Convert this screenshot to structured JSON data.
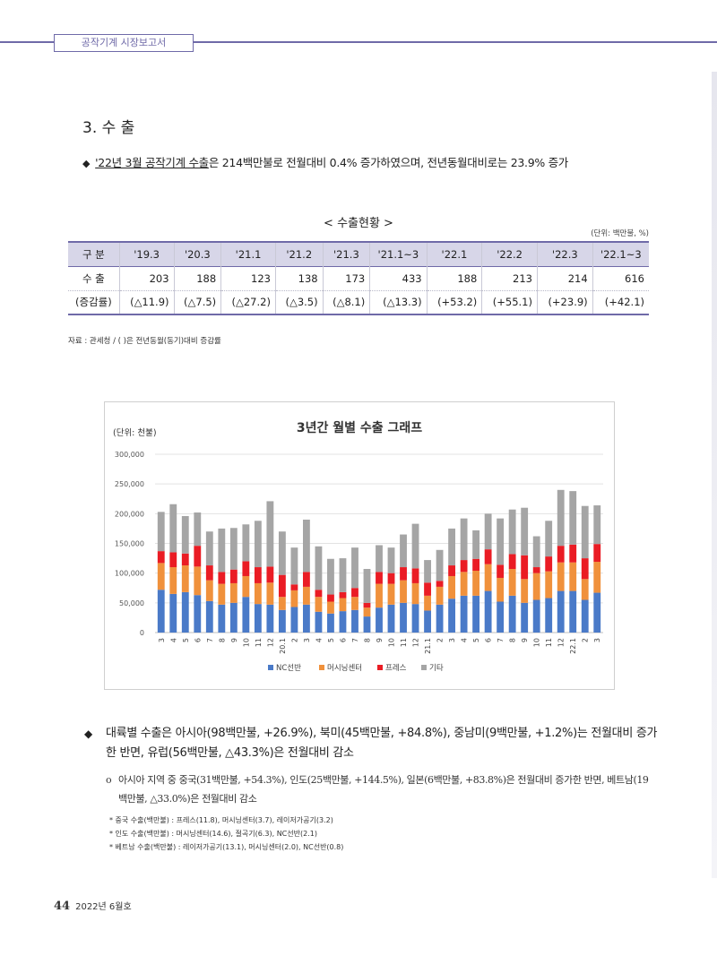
{
  "header": {
    "tab_label": "공작기계 시장보고서"
  },
  "section": {
    "title": "3. 수 출"
  },
  "lead": {
    "marker": "◆",
    "emphasis": "'22년 3월 공작기계 수출",
    "rest": "은 214백만불로 전월대비 0.4% 증가하였으며, 전년동월대비로는 23.9% 증가"
  },
  "table": {
    "title": "< 수출현황 >",
    "unit": "(단위: 백만불, %)",
    "headers": [
      "구 분",
      "'19.3",
      "'20.3",
      "'21.1",
      "'21.2",
      "'21.3",
      "'21.1~3",
      "'22.1",
      "'22.2",
      "'22.3",
      "'22.1~3"
    ],
    "rows": [
      {
        "label": "수 출",
        "values": [
          "203",
          "188",
          "123",
          "138",
          "173",
          "433",
          "188",
          "213",
          "214",
          "616"
        ]
      },
      {
        "label": "(증감률)",
        "values": [
          "(△11.9)",
          "(△7.5)",
          "(△27.2)",
          "(△3.5)",
          "(△8.1)",
          "(△13.3)",
          "(+53.2)",
          "(+55.1)",
          "(+23.9)",
          "(+42.1)"
        ]
      }
    ],
    "source": "자료 : 관세청 / (  )은 전년동월(동기)대비 증감률"
  },
  "chart_data": {
    "type": "bar",
    "stacked": true,
    "title": "3년간 월별 수출 그래프",
    "unit_label": "(단위: 천불)",
    "ylim": [
      0,
      300000
    ],
    "yticks": [
      0,
      50000,
      100000,
      150000,
      200000,
      250000,
      300000
    ],
    "ytick_labels": [
      "0",
      "50,000",
      "100,000",
      "150,000",
      "200,000",
      "250,000",
      "300,000"
    ],
    "grid": true,
    "legend_position": "bottom",
    "categories": [
      "3",
      "4",
      "5",
      "6",
      "7",
      "8",
      "9",
      "10",
      "11",
      "12",
      "20.1",
      "2",
      "3",
      "4",
      "5",
      "6",
      "7",
      "8",
      "9",
      "10",
      "11",
      "12",
      "21.1",
      "2",
      "3",
      "4",
      "5",
      "6",
      "7",
      "8",
      "9",
      "10",
      "11",
      "12",
      "22.1",
      "2",
      "3"
    ],
    "series": [
      {
        "name": "NC선반",
        "color": "#4a7ac8",
        "values": [
          72000,
          65000,
          68000,
          63000,
          53000,
          47000,
          50000,
          60000,
          48000,
          47000,
          38000,
          43000,
          47000,
          35000,
          32000,
          36000,
          38000,
          27000,
          42000,
          47000,
          50000,
          48000,
          37000,
          47000,
          57000,
          62000,
          62000,
          70000,
          52000,
          62000,
          50000,
          55000,
          58000,
          70000,
          70000,
          55000,
          67000
        ]
      },
      {
        "name": "머시닝센터",
        "color": "#f0913c",
        "values": [
          45000,
          45000,
          45000,
          48000,
          35000,
          35000,
          33000,
          35000,
          35000,
          37000,
          22000,
          28000,
          30000,
          25000,
          20000,
          22000,
          22000,
          15000,
          40000,
          35000,
          38000,
          35000,
          25000,
          30000,
          38000,
          40000,
          42000,
          45000,
          40000,
          45000,
          40000,
          45000,
          45000,
          48000,
          48000,
          35000,
          52000
        ]
      },
      {
        "name": "프레스",
        "color": "#ea1c24",
        "values": [
          20000,
          25000,
          20000,
          35000,
          25000,
          20000,
          23000,
          25000,
          27000,
          27000,
          37000,
          10000,
          25000,
          12000,
          12000,
          10000,
          15000,
          8000,
          20000,
          18000,
          22000,
          25000,
          22000,
          10000,
          18000,
          20000,
          20000,
          25000,
          22000,
          25000,
          40000,
          10000,
          25000,
          28000,
          30000,
          35000,
          30000
        ]
      },
      {
        "name": "기타",
        "color": "#a5a5a5",
        "values": [
          66000,
          81000,
          63000,
          56000,
          57000,
          73000,
          70000,
          62000,
          78000,
          110000,
          73000,
          62000,
          88000,
          73000,
          60000,
          57000,
          68000,
          57000,
          45000,
          43000,
          55000,
          75000,
          38000,
          52000,
          62000,
          70000,
          48000,
          60000,
          78000,
          75000,
          80000,
          52000,
          60000,
          94000,
          90000,
          88000,
          65000
        ]
      }
    ]
  },
  "bullet": {
    "marker": "◆",
    "text": "대륙별 수출은 아시아(98백만불, +26.9%), 북미(45백만불, +84.8%), 중남미(9백만불, +1.2%)는 전월대비 증가한 반면, 유럽(56백만불, △43.3%)은 전월대비 감소"
  },
  "sub_item": {
    "marker": "o",
    "text": "아시아 지역 중 중국(31백만불, +54.3%), 인도(25백만불, +144.5%), 일본(6백만불, +83.8%)은 전월대비 증가한 반면, 베트남(19백만불, △33.0%)은 전월대비 감소"
  },
  "notes": [
    "* 중국 수출(백만불) : 프레스(11.8), 머시닝센터(3.7), 레이저가공기(3.2)",
    "* 인도 수출(백만불) : 머시닝센터(14.6), 절곡기(6.3), NC선반(2.1)",
    "* 베트남 수출(백만불) : 레이저가공기(13.1), 머시닝센터(2.0), NC선반(0.8)"
  ],
  "footer": {
    "page": "44",
    "issue": "2022년 6월호"
  }
}
